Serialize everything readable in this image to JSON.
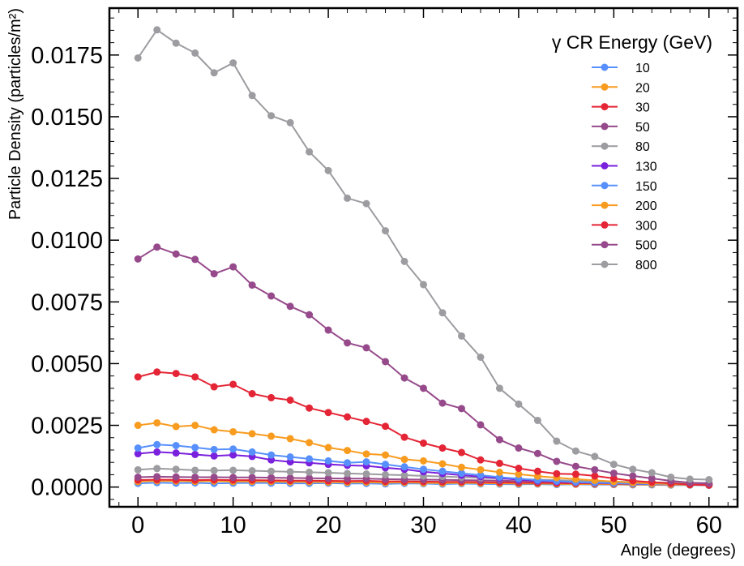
{
  "chart_data": {
    "type": "line",
    "title": "",
    "xlabel": "Angle (degrees)",
    "ylabel": "Particle Density (particles/m²)",
    "xlim": [
      -3,
      63
    ],
    "ylim": [
      -0.0008,
      0.0194
    ],
    "xticks": [
      0,
      10,
      20,
      30,
      40,
      50,
      60
    ],
    "xtick_labels": [
      "0",
      "10",
      "20",
      "30",
      "40",
      "50",
      "60"
    ],
    "yticks": [
      0,
      0.0025,
      0.005,
      0.0075,
      0.01,
      0.0125,
      0.015,
      0.0175
    ],
    "ytick_labels": [
      "0.0000",
      "0.0025",
      "0.0050",
      "0.0075",
      "0.0100",
      "0.0125",
      "0.0150",
      "0.0175"
    ],
    "legend_title": "γ CR Energy (GeV)",
    "legend_position": "top-right",
    "x": [
      0,
      2,
      4,
      6,
      8,
      10,
      12,
      14,
      16,
      18,
      20,
      22,
      24,
      26,
      28,
      30,
      32,
      34,
      36,
      38,
      40,
      42,
      44,
      46,
      48,
      50,
      52,
      54,
      56,
      58,
      60
    ],
    "series": [
      {
        "name": "10",
        "color": "#5790fc",
        "values": [
          0.00015,
          0.00018,
          0.00016,
          0.00017,
          0.00015,
          0.00016,
          0.00017,
          0.00016,
          0.00015,
          0.00015,
          0.00016,
          0.00014,
          0.00015,
          0.00013,
          0.00015,
          0.00014,
          0.00012,
          0.00014,
          0.00013,
          0.00012,
          0.00011,
          0.00012,
          0.0001,
          0.00011,
          0.0001,
          0.0001,
          9e-05,
          9e-05,
          8e-05,
          8e-05,
          7e-05
        ]
      },
      {
        "name": "20",
        "color": "#f89c20",
        "values": [
          0.00022,
          0.00025,
          0.00024,
          0.00023,
          0.00024,
          0.00022,
          0.00023,
          0.00022,
          0.00021,
          0.00021,
          0.0002,
          0.00019,
          0.0002,
          0.00018,
          0.00019,
          0.00017,
          0.00016,
          0.00017,
          0.00016,
          0.00015,
          0.00014,
          0.00014,
          0.00013,
          0.00012,
          0.00012,
          0.00011,
          0.0001,
          0.0001,
          9e-05,
          9e-05,
          8e-05
        ]
      },
      {
        "name": "30",
        "color": "#e42536",
        "values": [
          0.00028,
          0.0003,
          0.00029,
          0.00028,
          0.00029,
          0.00028,
          0.00028,
          0.00027,
          0.00026,
          0.00026,
          0.00025,
          0.00024,
          0.00025,
          0.00023,
          0.00023,
          0.00022,
          0.00021,
          0.00021,
          0.0002,
          0.00019,
          0.00018,
          0.00017,
          0.00016,
          0.00015,
          0.00015,
          0.00014,
          0.00013,
          0.00012,
          0.00011,
          0.0001,
          0.0001
        ]
      },
      {
        "name": "50",
        "color": "#964a8b",
        "values": [
          0.0004,
          0.00042,
          0.00041,
          0.0004,
          0.0004,
          0.00039,
          0.00039,
          0.00038,
          0.00037,
          0.00036,
          0.00035,
          0.00034,
          0.00034,
          0.00032,
          0.00031,
          0.0003,
          0.00029,
          0.00028,
          0.00027,
          0.00026,
          0.00024,
          0.00023,
          0.00022,
          0.0002,
          0.00019,
          0.00018,
          0.00016,
          0.00015,
          0.00014,
          0.00013,
          0.00012
        ]
      },
      {
        "name": "80",
        "color": "#9c9ca1",
        "values": [
          0.0007,
          0.00075,
          0.00072,
          0.00068,
          0.00067,
          0.00068,
          0.00066,
          0.00064,
          0.00062,
          0.0006,
          0.00058,
          0.00055,
          0.00053,
          0.0005,
          0.00048,
          0.00045,
          0.00043,
          0.0004,
          0.00038,
          0.00035,
          0.00032,
          0.0003,
          0.00028,
          0.00026,
          0.00024,
          0.00022,
          0.0002,
          0.00019,
          0.00018,
          0.00017,
          0.00016
        ]
      },
      {
        "name": "130",
        "color": "#7a21dd",
        "values": [
          0.00135,
          0.00142,
          0.00138,
          0.00132,
          0.00126,
          0.0013,
          0.00124,
          0.0011,
          0.00102,
          0.00098,
          0.00092,
          0.00088,
          0.00086,
          0.00078,
          0.00072,
          0.00062,
          0.00055,
          0.00048,
          0.00042,
          0.00036,
          0.0003,
          0.00026,
          0.00022,
          0.00019,
          0.00017,
          0.00015,
          0.00013,
          0.00012,
          0.00011,
          0.0001,
          9e-05
        ]
      },
      {
        "name": "150",
        "color": "#5790fc",
        "values": [
          0.00158,
          0.00172,
          0.00168,
          0.0016,
          0.00152,
          0.00154,
          0.00142,
          0.0013,
          0.00122,
          0.00114,
          0.00106,
          0.00098,
          0.00102,
          0.00092,
          0.00082,
          0.00072,
          0.00064,
          0.00056,
          0.00048,
          0.0004,
          0.00034,
          0.00028,
          0.00024,
          0.0002,
          0.00018,
          0.00016,
          0.00014,
          0.00012,
          0.00011,
          0.0001,
          9e-05
        ]
      },
      {
        "name": "200",
        "color": "#f89c20",
        "values": [
          0.0025,
          0.0026,
          0.00245,
          0.0025,
          0.00232,
          0.00224,
          0.00216,
          0.00206,
          0.00196,
          0.0018,
          0.0016,
          0.00148,
          0.00134,
          0.0013,
          0.00112,
          0.00106,
          0.00094,
          0.0008,
          0.0007,
          0.0006,
          0.00052,
          0.00044,
          0.00038,
          0.00032,
          0.00027,
          0.00022,
          0.00018,
          0.00015,
          0.00012,
          0.0001,
          8e-05
        ]
      },
      {
        "name": "300",
        "color": "#e42536",
        "values": [
          0.00446,
          0.00466,
          0.0046,
          0.00446,
          0.00406,
          0.00416,
          0.00378,
          0.00362,
          0.00352,
          0.0032,
          0.00302,
          0.00284,
          0.00266,
          0.00246,
          0.00202,
          0.00178,
          0.00158,
          0.0014,
          0.0011,
          0.00096,
          0.00076,
          0.00064,
          0.00054,
          0.00052,
          0.00045,
          0.00035,
          0.00025,
          0.0002,
          0.00015,
          0.0001,
          8e-05
        ]
      },
      {
        "name": "500",
        "color": "#964a8b",
        "values": [
          0.00924,
          0.00972,
          0.00944,
          0.00922,
          0.00864,
          0.00892,
          0.00818,
          0.00774,
          0.00732,
          0.00698,
          0.00636,
          0.00584,
          0.00564,
          0.00508,
          0.00442,
          0.004,
          0.0034,
          0.00318,
          0.00252,
          0.00192,
          0.00158,
          0.00136,
          0.00104,
          0.00084,
          0.0007,
          0.00056,
          0.00045,
          0.00035,
          0.00025,
          0.00018,
          0.00015
        ]
      },
      {
        "name": "800",
        "color": "#9c9ca1",
        "values": [
          0.01738,
          0.01852,
          0.01798,
          0.01758,
          0.01678,
          0.01718,
          0.01586,
          0.01504,
          0.01476,
          0.01358,
          0.01282,
          0.0117,
          0.01148,
          0.01038,
          0.00914,
          0.0082,
          0.00706,
          0.00612,
          0.00526,
          0.004,
          0.00336,
          0.0027,
          0.00186,
          0.00146,
          0.00124,
          0.00092,
          0.00072,
          0.00058,
          0.0004,
          0.00032,
          0.0003
        ]
      }
    ]
  }
}
